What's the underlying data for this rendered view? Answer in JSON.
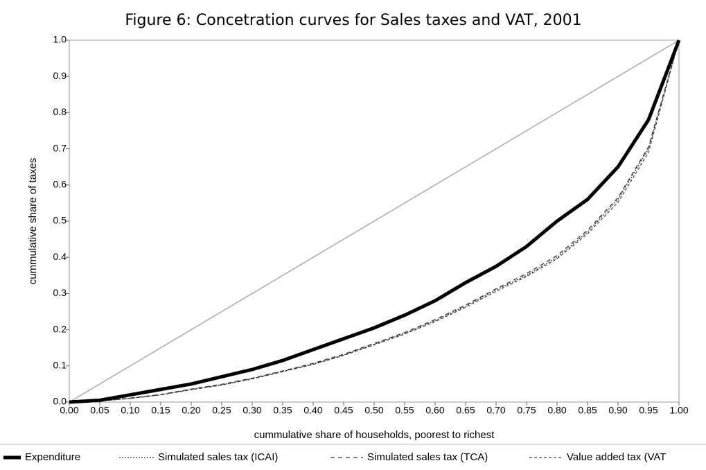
{
  "chart_data": {
    "type": "line",
    "title": "Figure 6: Concetration curves for Sales taxes and VAT, 2001",
    "x_label": "cummulative share of households, poorest to richest",
    "y_label": "cummulative share of taxes",
    "x": [
      0,
      0.05,
      0.1,
      0.15,
      0.2,
      0.25,
      0.3,
      0.35,
      0.4,
      0.45,
      0.5,
      0.55,
      0.6,
      0.65,
      0.7,
      0.75,
      0.8,
      0.85,
      0.9,
      0.95,
      1
    ],
    "series": [
      {
        "name": "Expenditure",
        "color": "#000000",
        "style": "solid-thick",
        "values": [
          0,
          0.005,
          0.02,
          0.035,
          0.05,
          0.07,
          0.09,
          0.115,
          0.145,
          0.175,
          0.205,
          0.24,
          0.28,
          0.33,
          0.375,
          0.43,
          0.5,
          0.56,
          0.65,
          0.78,
          1
        ]
      },
      {
        "name": "Simulated sales tax (ICAI)",
        "color": "#333333",
        "style": "dotted",
        "values": [
          0,
          0.003,
          0.01,
          0.02,
          0.035,
          0.048,
          0.065,
          0.085,
          0.105,
          0.13,
          0.16,
          0.19,
          0.225,
          0.265,
          0.31,
          0.35,
          0.4,
          0.47,
          0.56,
          0.7,
          1
        ]
      },
      {
        "name": "Simulated sales tax (TCA)",
        "color": "#333333",
        "style": "dashed",
        "values": [
          0,
          0.003,
          0.011,
          0.021,
          0.036,
          0.049,
          0.066,
          0.086,
          0.107,
          0.132,
          0.162,
          0.192,
          0.228,
          0.268,
          0.313,
          0.355,
          0.405,
          0.475,
          0.565,
          0.705,
          1
        ]
      },
      {
        "name": "Value added tax (VAT",
        "color": "#444444",
        "style": "short-dashed",
        "values": [
          0,
          0.003,
          0.01,
          0.02,
          0.034,
          0.047,
          0.064,
          0.084,
          0.104,
          0.129,
          0.158,
          0.188,
          0.222,
          0.262,
          0.306,
          0.347,
          0.396,
          0.465,
          0.552,
          0.69,
          1
        ]
      }
    ],
    "equality_line": {
      "color": "#aaaaaa",
      "x": [
        0,
        1
      ],
      "values": [
        0,
        1
      ]
    },
    "xlim": [
      0,
      1
    ],
    "ylim": [
      0,
      1
    ],
    "xticks": [
      {
        "value": 0,
        "label": "0.00"
      },
      0.05,
      {
        "value": 0.1,
        "label": "0.10"
      },
      0.15,
      {
        "value": 0.2,
        "label": "0.20"
      },
      0.25,
      {
        "value": 0.3,
        "label": "0.30"
      },
      0.35,
      {
        "value": 0.4,
        "label": "0.40"
      },
      0.45,
      {
        "value": 0.5,
        "label": "0.50"
      },
      0.55,
      {
        "value": 0.6,
        "label": "0.60"
      },
      0.65,
      {
        "value": 0.7,
        "label": "0.70"
      },
      0.75,
      {
        "value": 0.8,
        "label": "0.80"
      },
      0.85,
      {
        "value": 0.9,
        "label": "0.90"
      },
      0.95,
      {
        "value": 1,
        "label": "1.00"
      }
    ],
    "yticks": [
      {
        "value": 0,
        "label": "0.0"
      },
      0.1,
      0.2,
      0.3,
      0.4,
      0.5,
      0.6,
      0.7,
      0.8,
      0.9,
      {
        "value": 1,
        "label": "1.0"
      }
    ],
    "legend": "bottom"
  }
}
